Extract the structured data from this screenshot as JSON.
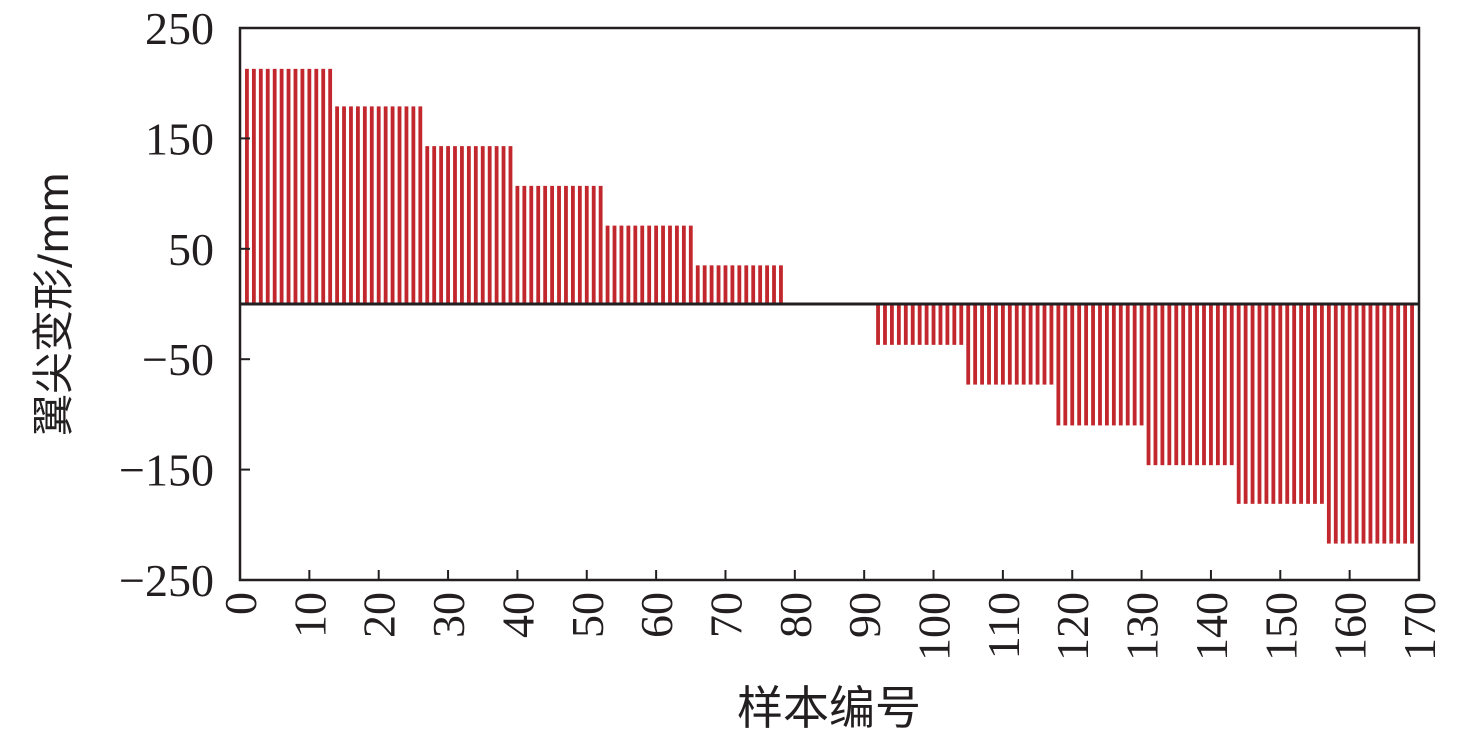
{
  "chart_data": {
    "type": "bar",
    "title": "",
    "xlabel": "样本编号",
    "ylabel": "翼尖变形/mm",
    "xlim": [
      0,
      170
    ],
    "ylim": [
      -250,
      250
    ],
    "xticks": [
      0,
      10,
      20,
      30,
      40,
      50,
      60,
      70,
      80,
      90,
      100,
      110,
      120,
      130,
      140,
      150,
      160,
      170
    ],
    "yticks": [
      250,
      150,
      50,
      -50,
      -150,
      -250
    ],
    "ytick_labels": [
      "250",
      "150",
      "50",
      "−50",
      "−150",
      "−250"
    ],
    "grid": false,
    "legend": "none",
    "bar_color": "#c1272d",
    "x": [
      1,
      2,
      3,
      4,
      5,
      6,
      7,
      8,
      9,
      10,
      11,
      12,
      13,
      14,
      15,
      16,
      17,
      18,
      19,
      20,
      21,
      22,
      23,
      24,
      25,
      26,
      27,
      28,
      29,
      30,
      31,
      32,
      33,
      34,
      35,
      36,
      37,
      38,
      39,
      40,
      41,
      42,
      43,
      44,
      45,
      46,
      47,
      48,
      49,
      50,
      51,
      52,
      53,
      54,
      55,
      56,
      57,
      58,
      59,
      60,
      61,
      62,
      63,
      64,
      65,
      66,
      67,
      68,
      69,
      70,
      71,
      72,
      73,
      74,
      75,
      76,
      77,
      78,
      79,
      80,
      81,
      82,
      83,
      84,
      85,
      86,
      87,
      88,
      89,
      90,
      91,
      92,
      93,
      94,
      95,
      96,
      97,
      98,
      99,
      100,
      101,
      102,
      103,
      104,
      105,
      106,
      107,
      108,
      109,
      110,
      111,
      112,
      113,
      114,
      115,
      116,
      117,
      118,
      119,
      120,
      121,
      122,
      123,
      124,
      125,
      126,
      127,
      128,
      129,
      130,
      131,
      132,
      133,
      134,
      135,
      136,
      137,
      138,
      139,
      140,
      141,
      142,
      143,
      144,
      145,
      146,
      147,
      148,
      149,
      150,
      151,
      152,
      153,
      154,
      155,
      156,
      157,
      158,
      159,
      160,
      161,
      162,
      163,
      164,
      165,
      166,
      167,
      168,
      169
    ],
    "values": [
      213,
      213,
      213,
      213,
      213,
      213,
      213,
      213,
      213,
      213,
      213,
      213,
      213,
      179,
      179,
      179,
      179,
      179,
      179,
      179,
      179,
      179,
      179,
      179,
      179,
      179,
      143,
      143,
      143,
      143,
      143,
      143,
      143,
      143,
      143,
      143,
      143,
      143,
      143,
      107,
      107,
      107,
      107,
      107,
      107,
      107,
      107,
      107,
      107,
      107,
      107,
      107,
      71,
      71,
      71,
      71,
      71,
      71,
      71,
      71,
      71,
      71,
      71,
      71,
      71,
      35,
      35,
      35,
      35,
      35,
      35,
      35,
      35,
      35,
      35,
      35,
      35,
      35,
      0,
      0,
      0,
      0,
      0,
      0,
      0,
      0,
      0,
      0,
      0,
      0,
      0,
      -37,
      -37,
      -37,
      -37,
      -37,
      -37,
      -37,
      -37,
      -37,
      -37,
      -37,
      -37,
      -37,
      -73,
      -73,
      -73,
      -73,
      -73,
      -73,
      -73,
      -73,
      -73,
      -73,
      -73,
      -73,
      -73,
      -110,
      -110,
      -110,
      -110,
      -110,
      -110,
      -110,
      -110,
      -110,
      -110,
      -110,
      -110,
      -110,
      -146,
      -146,
      -146,
      -146,
      -146,
      -146,
      -146,
      -146,
      -146,
      -146,
      -146,
      -146,
      -146,
      -181,
      -181,
      -181,
      -181,
      -181,
      -181,
      -181,
      -181,
      -181,
      -181,
      -181,
      -181,
      -181,
      -217,
      -217,
      -217,
      -217,
      -217,
      -217,
      -217,
      -217,
      -217,
      -217,
      -217,
      -217,
      -217
    ]
  }
}
